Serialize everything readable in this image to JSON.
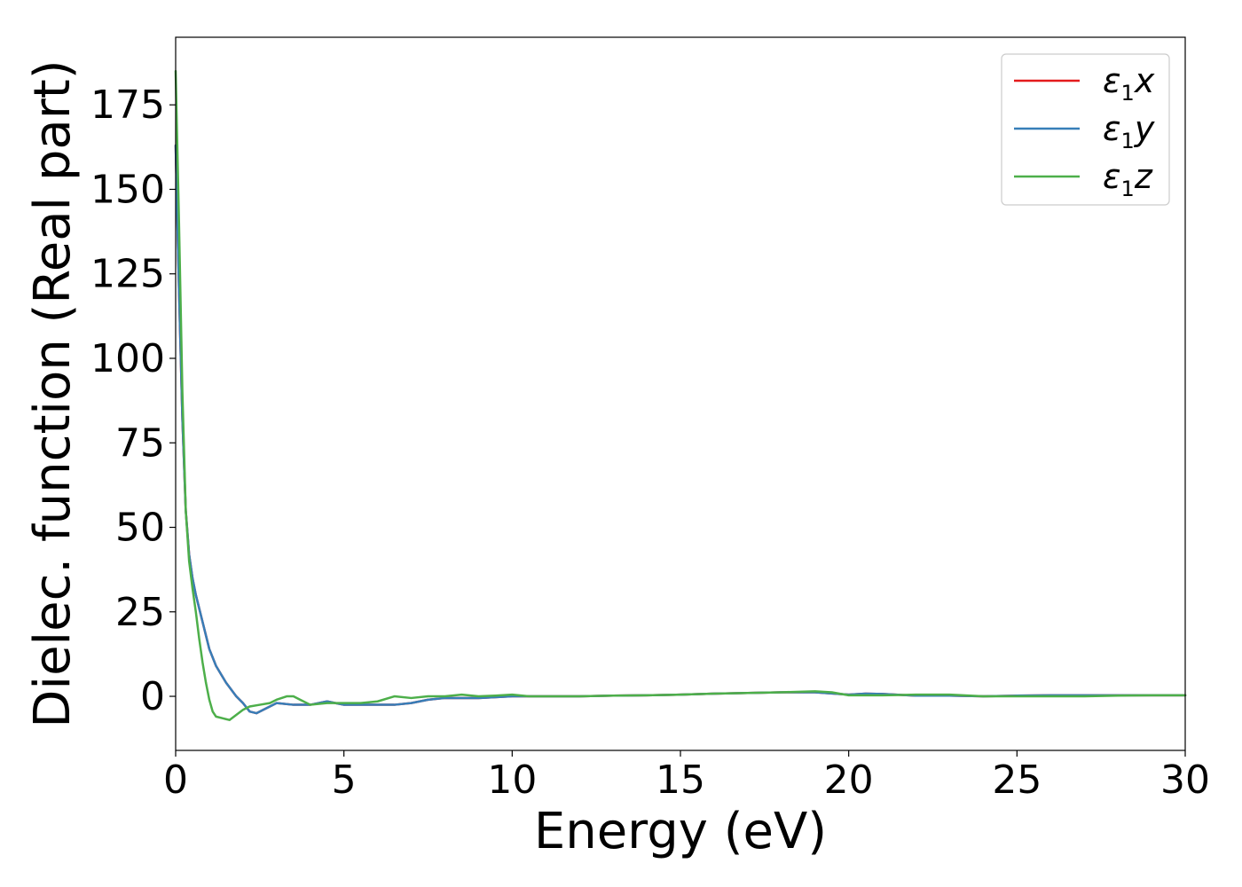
{
  "chart_data": {
    "type": "line",
    "title": "",
    "xlabel": "Energy (eV)",
    "ylabel": "Dielec. function (Real part)",
    "xlim": [
      0,
      30
    ],
    "ylim": [
      -16,
      195
    ],
    "xticks": [
      0,
      5,
      10,
      15,
      20,
      25,
      30
    ],
    "yticks": [
      0,
      25,
      50,
      75,
      100,
      125,
      150,
      175
    ],
    "grid": false,
    "legend_position": "top-right",
    "series": [
      {
        "name": "ε1x",
        "legend_base": "ε",
        "legend_sub": "1",
        "legend_tail": "x",
        "color": "#e41a1c",
        "x": [
          0,
          0.1,
          0.2,
          0.3,
          0.4,
          0.5,
          0.6,
          0.8,
          1.0,
          1.2,
          1.5,
          1.8,
          2.0,
          2.2,
          2.4,
          2.7,
          3.0,
          3.5,
          4.0,
          4.5,
          5.0,
          5.5,
          6.0,
          6.5,
          7.0,
          7.5,
          8.0,
          8.5,
          9.0,
          10.0,
          11.0,
          12.0,
          13.0,
          14.0,
          15.0,
          16.0,
          17.0,
          18.0,
          19.0,
          20.0,
          20.5,
          21.0,
          22.0,
          23.0,
          24.0,
          25.0,
          26.0,
          27.0,
          28.0,
          29.0,
          30.0
        ],
        "y": [
          163,
          120,
          82,
          55,
          42,
          35,
          30,
          22,
          14,
          9,
          4,
          0,
          -2,
          -4.5,
          -5,
          -3.5,
          -2,
          -2.5,
          -2.5,
          -1.5,
          -2.5,
          -2.5,
          -2.5,
          -2.5,
          -2,
          -1,
          -0.5,
          -0.5,
          -0.5,
          0,
          0,
          0,
          0.2,
          0.3,
          0.5,
          0.8,
          1,
          1.2,
          1.2,
          0.5,
          0.8,
          0.7,
          0.2,
          0.2,
          0,
          0.2,
          0.3,
          0.3,
          0.3,
          0.3,
          0.3
        ]
      },
      {
        "name": "ε1y",
        "legend_base": "ε",
        "legend_sub": "1",
        "legend_tail": "y",
        "color": "#377eb8",
        "x": [
          0,
          0.1,
          0.2,
          0.3,
          0.4,
          0.5,
          0.6,
          0.8,
          1.0,
          1.2,
          1.5,
          1.8,
          2.0,
          2.2,
          2.4,
          2.7,
          3.0,
          3.5,
          4.0,
          4.5,
          5.0,
          5.5,
          6.0,
          6.5,
          7.0,
          7.5,
          8.0,
          8.5,
          9.0,
          10.0,
          11.0,
          12.0,
          13.0,
          14.0,
          15.0,
          16.0,
          17.0,
          18.0,
          19.0,
          20.0,
          20.5,
          21.0,
          22.0,
          23.0,
          24.0,
          25.0,
          26.0,
          27.0,
          28.0,
          29.0,
          30.0
        ],
        "y": [
          163,
          120,
          82,
          55,
          42,
          35,
          30,
          22,
          14,
          9,
          4,
          0,
          -2,
          -4.5,
          -5,
          -3.5,
          -2,
          -2.5,
          -2.5,
          -1.5,
          -2.5,
          -2.5,
          -2.5,
          -2.5,
          -2,
          -1,
          -0.5,
          -0.5,
          -0.5,
          0,
          0,
          0,
          0.2,
          0.3,
          0.5,
          0.8,
          1,
          1.2,
          1.2,
          0.5,
          0.8,
          0.7,
          0.2,
          0.2,
          0,
          0.2,
          0.3,
          0.3,
          0.3,
          0.3,
          0.3
        ]
      },
      {
        "name": "ε1z",
        "legend_base": "ε",
        "legend_sub": "1",
        "legend_tail": "z",
        "color": "#4daf4a",
        "x": [
          0,
          0.1,
          0.2,
          0.3,
          0.4,
          0.5,
          0.6,
          0.7,
          0.8,
          0.9,
          1.0,
          1.1,
          1.2,
          1.4,
          1.6,
          1.8,
          2.0,
          2.2,
          2.5,
          2.8,
          3.0,
          3.3,
          3.5,
          3.7,
          4.0,
          4.5,
          5.0,
          5.5,
          6.0,
          6.5,
          7.0,
          7.5,
          8.0,
          8.5,
          9.0,
          9.5,
          10.0,
          10.5,
          11.0,
          12.0,
          13.0,
          14.0,
          15.0,
          16.0,
          17.0,
          18.0,
          19.0,
          19.5,
          20.0,
          21.0,
          22.0,
          23.0,
          24.0,
          25.0,
          26.0,
          27.0,
          28.0,
          29.0,
          30.0
        ],
        "y": [
          185,
          140,
          90,
          55,
          40,
          32,
          25,
          17,
          10,
          4,
          -1,
          -4.5,
          -6,
          -6.5,
          -7,
          -5.5,
          -4,
          -3,
          -2.5,
          -2,
          -1,
          0,
          0,
          -1,
          -2.5,
          -2,
          -2,
          -2,
          -1.5,
          0,
          -0.5,
          0,
          0,
          0.5,
          0,
          0.2,
          0.5,
          0,
          0,
          0,
          0.2,
          0.3,
          0.5,
          0.8,
          1,
          1.2,
          1.5,
          1.2,
          0.3,
          0.3,
          0.5,
          0.5,
          0,
          0,
          0,
          0,
          0.2,
          0.3,
          0.3
        ]
      }
    ]
  }
}
